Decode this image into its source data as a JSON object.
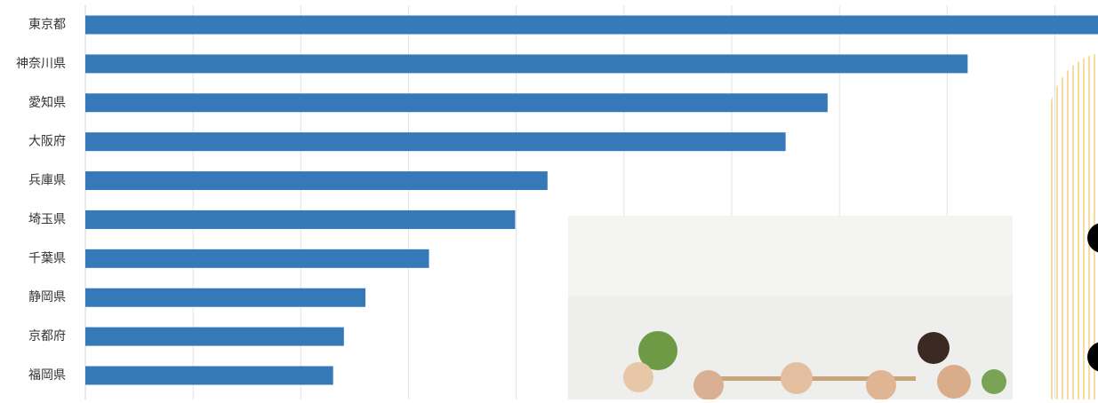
{
  "chart_data": {
    "type": "bar",
    "orientation": "horizontal",
    "categories": [
      "東京都",
      "神奈川県",
      "愛知県",
      "大阪府",
      "兵庫県",
      "埼玉県",
      "千葉県",
      "静岡県",
      "京都府",
      "福岡県"
    ],
    "values": [
      9.4,
      8.19,
      6.89,
      6.5,
      4.29,
      3.99,
      3.19,
      2.6,
      2.4,
      2.3
    ],
    "color": "#3579b8",
    "xlim": [
      0,
      9.4
    ],
    "xticks": [
      0,
      1,
      2,
      3,
      4,
      5,
      6,
      7,
      8,
      9
    ],
    "grid": true
  }
}
